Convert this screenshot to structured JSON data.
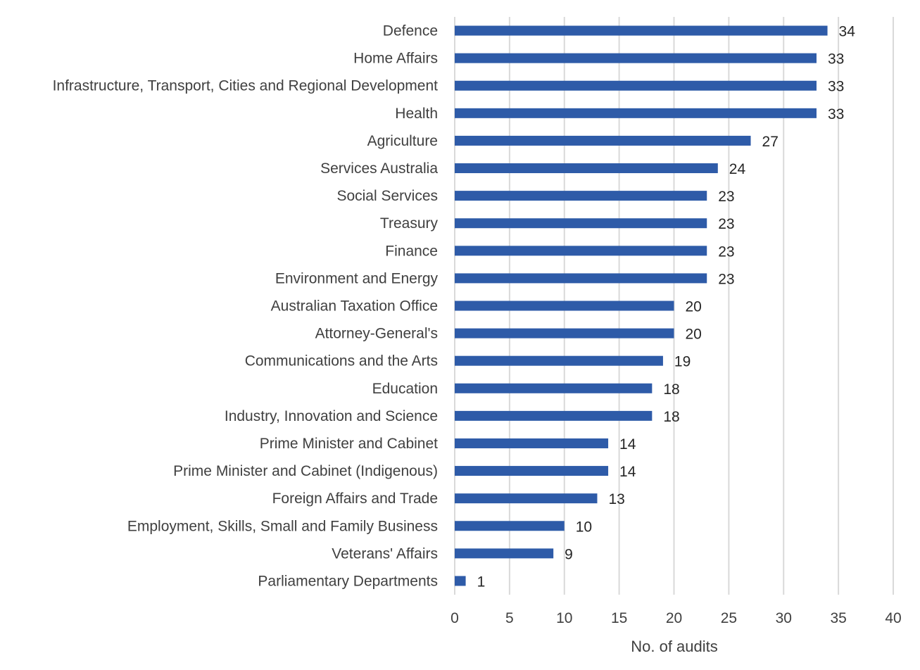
{
  "chart_data": {
    "type": "bar",
    "orientation": "horizontal",
    "categories": [
      "Defence",
      "Home Affairs",
      "Infrastructure, Transport, Cities and Regional Development",
      "Health",
      "Agriculture",
      "Services Australia",
      "Social Services",
      "Treasury",
      "Finance",
      "Environment and Energy",
      "Australian Taxation Office",
      "Attorney-General's",
      "Communications and the Arts",
      "Education",
      "Industry, Innovation and Science",
      "Prime Minister and Cabinet",
      "Prime Minister and Cabinet (Indigenous)",
      "Foreign Affairs and Trade",
      "Employment, Skills, Small and Family Business",
      "Veterans' Affairs",
      "Parliamentary Departments"
    ],
    "values": [
      34,
      33,
      33,
      33,
      27,
      24,
      23,
      23,
      23,
      23,
      20,
      20,
      19,
      18,
      18,
      14,
      14,
      13,
      10,
      9,
      1
    ],
    "title": "",
    "xlabel": "No. of audits",
    "ylabel": "",
    "xlim": [
      0,
      40
    ],
    "xticks": [
      0,
      5,
      10,
      15,
      20,
      25,
      30,
      35,
      40
    ],
    "grid": "vertical",
    "legend": "none",
    "bar_color": "#2E5BA8",
    "data_labels": true
  }
}
